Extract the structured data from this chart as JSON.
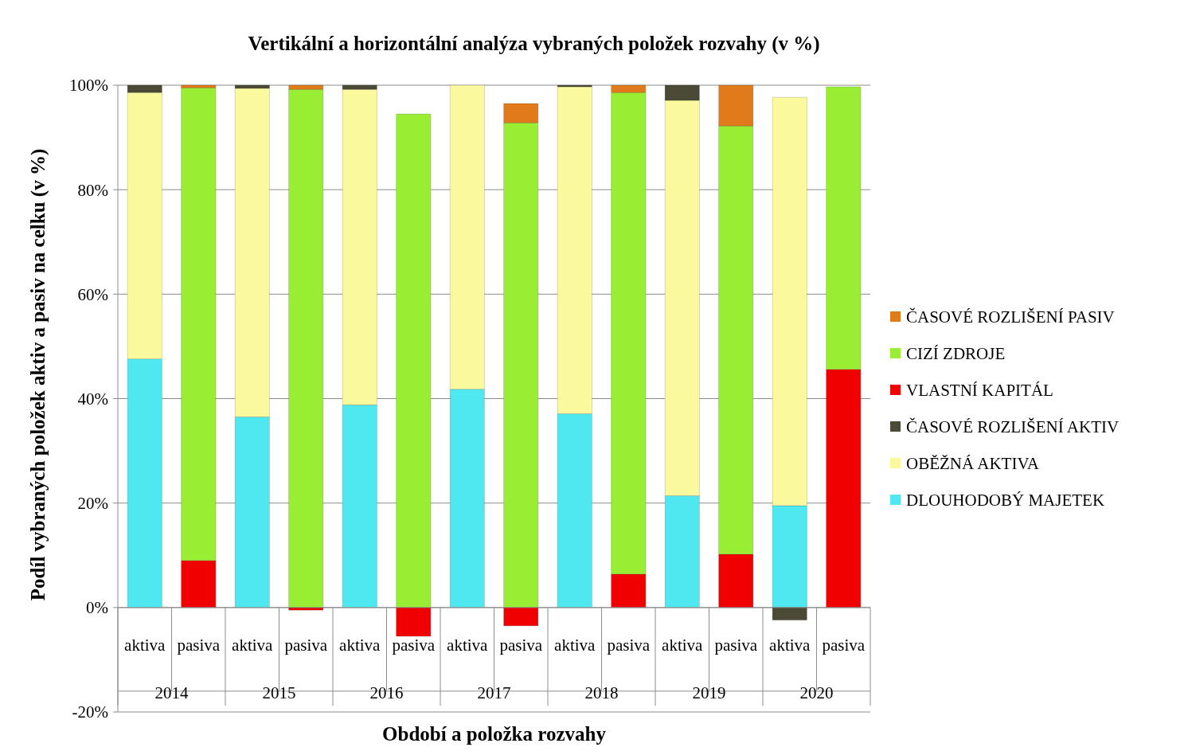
{
  "chart_data": {
    "type": "bar",
    "stacked": true,
    "title": "Vertikální a horizontální analýza vybraných položek rozvahy (v %)",
    "xlabel": "Období a položka rozvahy",
    "ylabel": "Podíl vybraných položek aktiv a pasiv na celku (v %)",
    "categories": [
      "aktiva",
      "pasiva",
      "aktiva",
      "pasiva",
      "aktiva",
      "pasiva",
      "aktiva",
      "pasiva",
      "aktiva",
      "pasiva",
      "aktiva",
      "pasiva",
      "aktiva",
      "pasiva"
    ],
    "annotations": [
      "2014",
      "2015",
      "2016",
      "2017",
      "2018",
      "2019",
      "2020"
    ],
    "series": [
      {
        "name": "DLOUHODOBÝ MAJETEK",
        "color": "#4fe8f0",
        "values": [
          47.6,
          null,
          36.5,
          null,
          38.8,
          null,
          41.8,
          null,
          37.1,
          null,
          21.4,
          null,
          19.5,
          null
        ]
      },
      {
        "name": "OBĚŽNÁ AKTIVA",
        "color": "#fbf99e",
        "values": [
          51,
          null,
          62.9,
          null,
          60.4,
          null,
          58.2,
          null,
          62.6,
          null,
          75.7,
          null,
          78.2,
          null
        ]
      },
      {
        "name": "ČASOVÉ ROZLIŠENÍ AKTIV",
        "color": "#4a4a36",
        "values": [
          1.4,
          null,
          0.6,
          null,
          0.8,
          null,
          null,
          null,
          0.3,
          null,
          2.9,
          null,
          -2.4,
          null
        ]
      },
      {
        "name": "VLASTNÍ KAPITÁL",
        "color": "#f00000",
        "values": [
          null,
          9,
          null,
          -0.5,
          null,
          -5.5,
          null,
          -3.5,
          null,
          6.4,
          null,
          10.2,
          null,
          45.6
        ]
      },
      {
        "name": "CIZÍ ZDROJE",
        "color": "#99ee33",
        "values": [
          null,
          90.5,
          null,
          99.2,
          null,
          94.5,
          null,
          92.8,
          null,
          92.2,
          null,
          82,
          null,
          54.1
        ]
      },
      {
        "name": "ČASOVÉ ROZLIŠENÍ PASIV",
        "color": "#e07a1a",
        "values": [
          null,
          0.5,
          null,
          0.8,
          null,
          null,
          null,
          3.7,
          null,
          1.4,
          null,
          7.8,
          null,
          null
        ]
      }
    ],
    "ylim": [
      -20,
      100
    ],
    "yticks": [
      {
        "value": -20,
        "label": "-20%"
      },
      {
        "value": 0,
        "label": "0%"
      },
      {
        "value": 20,
        "label": "20%"
      },
      {
        "value": 40,
        "label": "40%"
      },
      {
        "value": 60,
        "label": "60%"
      },
      {
        "value": 80,
        "label": "80%"
      },
      {
        "value": 100,
        "label": "100%"
      }
    ],
    "grid": "y",
    "legend": "right"
  }
}
